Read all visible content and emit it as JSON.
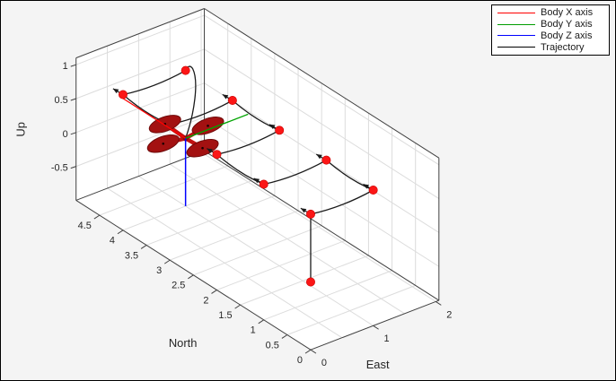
{
  "window": {
    "background": "#f4f4f4",
    "border_color": "#000000"
  },
  "axes_panel": {
    "background": "#ffffff",
    "grid_color": "#dcdcdc",
    "edge_color": "#404040",
    "tick_label_color": "#262626"
  },
  "legend": {
    "background": "#ffffff",
    "border_color": "#000000",
    "items": [
      {
        "label": "Body X axis",
        "color": "#ff0000"
      },
      {
        "label": "Body Y axis",
        "color": "#009d00"
      },
      {
        "label": "Body Z axis",
        "color": "#0000ff"
      },
      {
        "label": "Trajectory",
        "color": "#000000"
      }
    ]
  },
  "chart_data": {
    "type": "line",
    "subtype": "3d-quadcopter-trajectory",
    "title": "",
    "grid": true,
    "legend_position": "top-right",
    "legend_entries": [
      "Body X axis",
      "Body Y axis",
      "Body Z axis",
      "Trajectory"
    ],
    "axes": {
      "east": {
        "label": "East",
        "ticks": [
          0,
          1,
          2
        ],
        "grid_step": 0.5,
        "range": [
          0,
          2.05
        ]
      },
      "north": {
        "label": "North",
        "ticks": [
          0,
          0.5,
          1,
          1.5,
          2,
          2.5,
          3,
          3.5,
          4,
          4.5
        ],
        "grid_step": 0.5,
        "range": [
          0,
          5
        ]
      },
      "up": {
        "label": "Up",
        "ticks": [
          1,
          0.5,
          0,
          -0.5
        ],
        "grid_step": 0.5,
        "range": [
          -1,
          1.1
        ]
      }
    },
    "trajectory_NEU": [
      [
        4,
        1,
        0
      ],
      [
        4,
        1,
        1
      ],
      [
        4,
        0,
        1
      ],
      [
        3,
        0,
        1
      ],
      [
        3,
        1,
        1
      ],
      [
        2,
        1,
        1
      ],
      [
        2,
        0,
        1
      ],
      [
        1,
        0,
        1
      ],
      [
        1,
        1,
        1
      ],
      [
        0,
        1,
        1
      ],
      [
        0,
        0,
        1
      ],
      [
        0,
        0,
        0
      ]
    ],
    "waypoint_markers_NEU": [
      [
        4,
        1,
        1
      ],
      [
        4,
        0,
        1
      ],
      [
        3,
        1,
        1
      ],
      [
        2,
        1,
        1
      ],
      [
        2,
        0,
        1
      ],
      [
        1,
        0,
        1
      ],
      [
        1,
        1,
        1
      ],
      [
        0,
        1,
        1
      ],
      [
        0,
        0,
        1
      ],
      [
        0,
        0,
        0
      ]
    ],
    "quadcopter": {
      "position_NEU": [
        4,
        1,
        0
      ],
      "arm_color": "#c01212",
      "rotor_fill": "#a31111",
      "rotor_stroke": "#6e0a0a",
      "hub_color": "#8f0e0e"
    },
    "body_axes": {
      "x": {
        "color": "#ff0000",
        "direction": "north",
        "length": 1.35
      },
      "y": {
        "color": "#00a400",
        "direction": "east",
        "length": 1
      },
      "z": {
        "color": "#0000ff",
        "direction": "down",
        "length": 1
      }
    },
    "trajectory_color": "#1a1a1a",
    "marker_color": "#fb1616"
  }
}
